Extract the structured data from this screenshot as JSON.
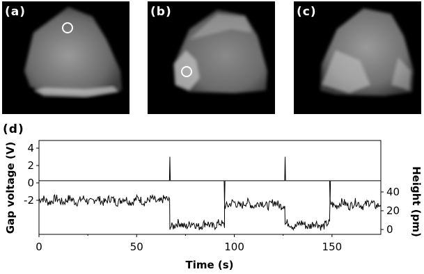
{
  "panels": [
    {
      "label": "(a)"
    },
    {
      "label": "(b)"
    },
    {
      "label": "(c)"
    }
  ],
  "panel_d_label": "(d)",
  "chart_data": {
    "type": "line",
    "xlabel": "Time (s)",
    "x_ticks": [
      "0",
      "50",
      "100",
      "150"
    ],
    "xlim": [
      0,
      175
    ],
    "series": [
      {
        "name": "Gap voltage",
        "axis": "left",
        "ylabel": "Gap voltage (V)",
        "y_ticks": [
          "4",
          "2",
          "0",
          "-2"
        ],
        "baseline": 0.25,
        "pulses": [
          {
            "t": 67,
            "v": 3.0
          },
          {
            "t": 95,
            "v": -2.5
          },
          {
            "t": 126,
            "v": 3.0
          },
          {
            "t": 149,
            "v": -2.5
          }
        ]
      },
      {
        "name": "Height",
        "axis": "right",
        "ylabel": "Height (pm)",
        "y_ticks": [
          "40",
          "20",
          "0"
        ],
        "levels": [
          {
            "t0": 0,
            "t1": 67,
            "h": 31
          },
          {
            "t0": 67,
            "t1": 95,
            "h": 5
          },
          {
            "t0": 95,
            "t1": 126,
            "h": 27
          },
          {
            "t0": 126,
            "t1": 149,
            "h": 5
          },
          {
            "t0": 149,
            "t1": 175,
            "h": 27
          }
        ]
      }
    ]
  }
}
